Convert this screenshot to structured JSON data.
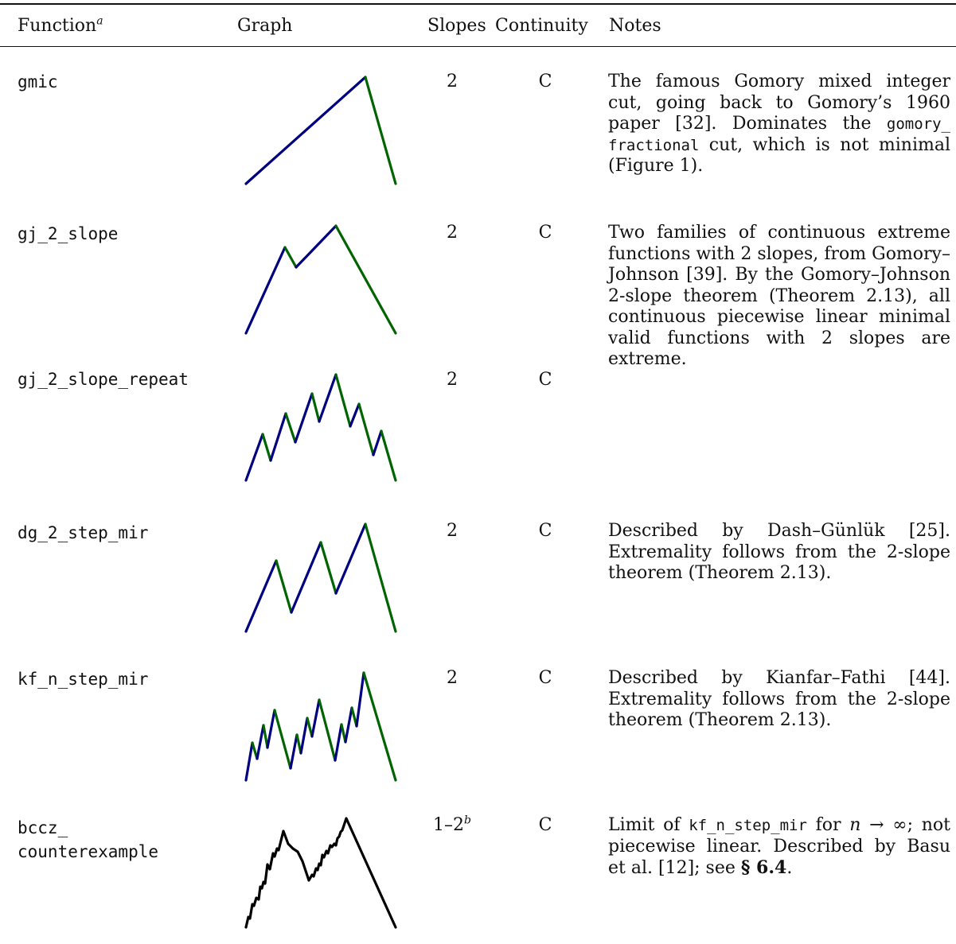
{
  "header": {
    "function": "Function",
    "function_sup": "a",
    "graph": "Graph",
    "slopes": "Slopes",
    "continuity": "Continuity",
    "notes": "Notes"
  },
  "rows": [
    {
      "name": "gmic",
      "slopes": "2",
      "slopes_sup": "",
      "continuity": "C"
    },
    {
      "name": "gj_2_slope",
      "slopes": "2",
      "slopes_sup": "",
      "continuity": "C"
    },
    {
      "name": "gj_2_slope_repeat",
      "slopes": "2",
      "slopes_sup": "",
      "continuity": "C"
    },
    {
      "name": "dg_2_step_mir",
      "slopes": "2",
      "slopes_sup": "",
      "continuity": "C"
    },
    {
      "name": "kf_n_step_mir",
      "slopes": "2",
      "slopes_sup": "",
      "continuity": "C"
    },
    {
      "name_line1": "bccz_",
      "name_line2": "counterexample",
      "slopes": "1–2",
      "slopes_sup": "b",
      "continuity": "C"
    }
  ],
  "notes": {
    "gmic": [
      "The famous Gomory mixed integer cut, going back to Gomory’s 1960 paper [32]. Dominates the ",
      "gomory_ fractional",
      " cut, which is not minimal (Figure 1)."
    ],
    "gj_2_slope": "Two families of continuous extreme functions with 2 slopes, from Gomory–Johnson [39]. By the Gomory–Johnson 2-slope theorem (Theorem 2.13), all continuous piecewise linear minimal valid functions with 2 slopes are extreme.",
    "dg_2_step_mir": "Described by Dash–Günlük [25]. Extremality follows from the 2-slope theorem (Theorem 2.13).",
    "kf_n_step_mir": "Described by Kianfar–Fathi [44]. Extremality follows from the 2-slope theorem (Theorem 2.13).",
    "bccz": [
      "Limit of ",
      "kf_n_step_mir",
      " for ",
      "n → ∞",
      "; not piecewise linear. Described by Basu et al. [12]; see ",
      "§ 6.4",
      "."
    ]
  },
  "colors": {
    "positive_slope": "#000080",
    "negative_slope": "#006400",
    "limit": "#000000"
  },
  "graph_icons": [
    "gmic-graph",
    "gj-2-slope-graph",
    "gj-2-slope-repeat-graph",
    "dg-2-step-mir-graph",
    "kf-n-step-mir-graph",
    "bccz-counterexample-graph"
  ]
}
